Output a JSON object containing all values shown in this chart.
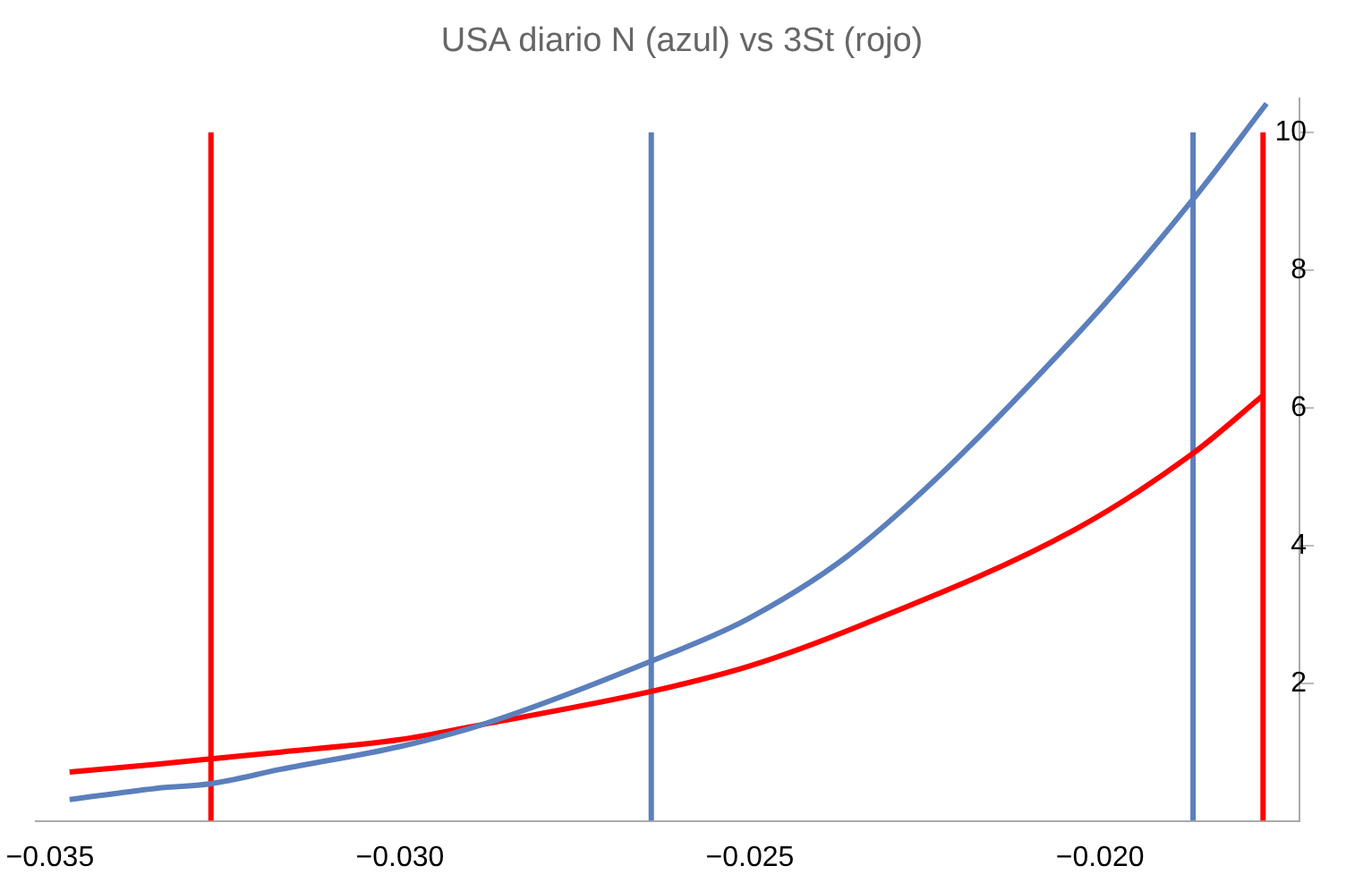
{
  "chart_data": {
    "type": "line",
    "title": "USA diario N (azul) vs 3St (rojo)",
    "xlim": [
      -0.0352,
      -0.01715
    ],
    "xticks": [
      {
        "value": -0.035,
        "label": "−0.035"
      },
      {
        "value": -0.03,
        "label": "−0.030"
      },
      {
        "value": -0.025,
        "label": "−0.025"
      },
      {
        "value": -0.02,
        "label": "−0.020"
      }
    ],
    "ylim": [
      0,
      10.5
    ],
    "yticks": [
      2,
      4,
      6,
      8,
      10
    ],
    "grid": false,
    "legend": false,
    "marker": "none",
    "line_style": "solid",
    "series": [
      {
        "color": "#5b7fbd",
        "x": [
          -0.03472,
          -0.0335,
          -0.0327,
          -0.0317,
          -0.03,
          -0.02882,
          -0.02641,
          -0.025,
          -0.02344,
          -0.02036,
          -0.01867,
          -0.01762
        ],
        "values": [
          0.31,
          0.47,
          0.54,
          0.75,
          1.08,
          1.4,
          2.32,
          2.95,
          3.98,
          7.03,
          9.03,
          10.42
        ]
      },
      {
        "color": "#ff0000",
        "x": [
          -0.03472,
          -0.0335,
          -0.0327,
          -0.0317,
          -0.03,
          -0.02882,
          -0.02641,
          -0.025,
          -0.02344,
          -0.02036,
          -0.01867,
          -0.01767
        ],
        "values": [
          0.71,
          0.82,
          0.9,
          1.0,
          1.18,
          1.4,
          1.88,
          2.25,
          2.83,
          4.23,
          5.34,
          6.18
        ]
      },
      {
        "color": "#ff0000",
        "x": [
          -0.0327,
          -0.0327
        ],
        "values": [
          0,
          10
        ]
      },
      {
        "color": "#5b7fbd",
        "x": [
          -0.02641,
          -0.02641
        ],
        "values": [
          0,
          10
        ]
      },
      {
        "color": "#5b7fbd",
        "x": [
          -0.01867,
          -0.01867
        ],
        "values": [
          0,
          10
        ]
      },
      {
        "color": "#ff0000",
        "x": [
          -0.01767,
          -0.01767
        ],
        "values": [
          0,
          10
        ]
      }
    ]
  }
}
